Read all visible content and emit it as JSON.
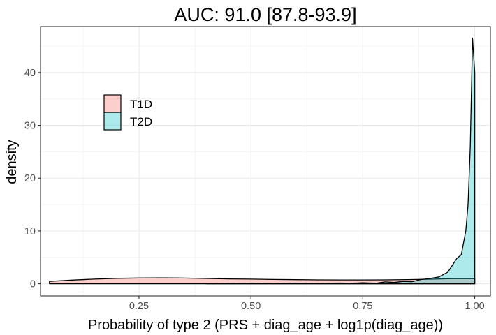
{
  "chart_data": {
    "type": "area",
    "subtype": "density",
    "title": "AUC: 91.0 [87.8-93.9]",
    "xlabel": "Probability of type 2 (PRS + diag_age + log1p(diag_age))",
    "ylabel": "density",
    "xlim": [
      0.03,
      1.035
    ],
    "ylim": [
      -2.3,
      48.7
    ],
    "x_ticks": [
      0.25,
      0.5,
      0.75,
      1.0
    ],
    "x_tick_labels": [
      "0.25",
      "0.50",
      "0.75",
      "1.00"
    ],
    "y_ticks": [
      0,
      10,
      20,
      30,
      40
    ],
    "y_tick_labels": [
      "0",
      "10",
      "20",
      "30",
      "40"
    ],
    "grid": true,
    "legend_position": "top-left",
    "series": [
      {
        "name": "T1D",
        "color": "#f8766d",
        "points": [
          [
            0.05,
            0.45
          ],
          [
            0.1,
            0.7
          ],
          [
            0.15,
            0.88
          ],
          [
            0.2,
            1.03
          ],
          [
            0.25,
            1.1
          ],
          [
            0.3,
            1.12
          ],
          [
            0.35,
            1.08
          ],
          [
            0.4,
            1.0
          ],
          [
            0.45,
            0.93
          ],
          [
            0.5,
            0.88
          ],
          [
            0.55,
            0.82
          ],
          [
            0.6,
            0.78
          ],
          [
            0.65,
            0.74
          ],
          [
            0.7,
            0.72
          ],
          [
            0.75,
            0.72
          ],
          [
            0.8,
            0.74
          ],
          [
            0.85,
            0.79
          ],
          [
            0.9,
            0.87
          ],
          [
            0.95,
            0.98
          ],
          [
            1.0,
            0.98
          ]
        ]
      },
      {
        "name": "T2D",
        "color": "#00bfc4",
        "points": [
          [
            0.4,
            0.0
          ],
          [
            0.45,
            0.05
          ],
          [
            0.5,
            0.1
          ],
          [
            0.55,
            0.02
          ],
          [
            0.6,
            0.12
          ],
          [
            0.65,
            0.05
          ],
          [
            0.7,
            0.15
          ],
          [
            0.72,
            0.08
          ],
          [
            0.75,
            0.2
          ],
          [
            0.78,
            0.1
          ],
          [
            0.8,
            0.35
          ],
          [
            0.82,
            0.25
          ],
          [
            0.84,
            0.45
          ],
          [
            0.86,
            0.4
          ],
          [
            0.88,
            0.8
          ],
          [
            0.9,
            1.0
          ],
          [
            0.92,
            1.3
          ],
          [
            0.94,
            2.2
          ],
          [
            0.95,
            3.5
          ],
          [
            0.96,
            4.8
          ],
          [
            0.97,
            5.5
          ],
          [
            0.98,
            10.0
          ],
          [
            0.985,
            15.0
          ],
          [
            0.99,
            26.0
          ],
          [
            0.995,
            46.5
          ],
          [
            1.0,
            40.0
          ]
        ]
      }
    ]
  }
}
